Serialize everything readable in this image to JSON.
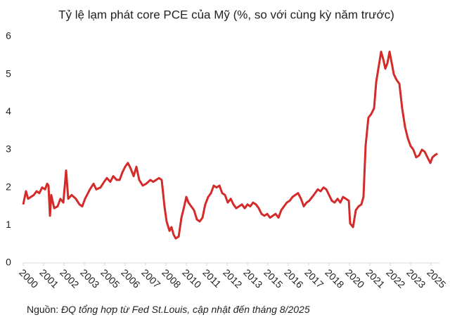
{
  "chart_data": {
    "type": "line",
    "title": "Tỷ lệ lạm phát core PCE của Mỹ (%, so với cùng kỳ năm trước)",
    "source_label": "Nguồn:",
    "source": "ĐQ tổng hợp từ Fed St.Louis, cập nhật đến tháng 8/2025",
    "color": "#d42a2a",
    "x": [
      2000.0,
      2000.17,
      2000.3,
      2000.65,
      2000.82,
      2000.99,
      2001.16,
      2001.34,
      2001.47,
      2001.55,
      2001.64,
      2001.72,
      2001.9,
      2002.11,
      2002.28,
      2002.46,
      2002.63,
      2002.76,
      2002.97,
      2003.23,
      2003.45,
      2003.62,
      2003.79,
      2004.09,
      2004.31,
      2004.48,
      2004.74,
      2004.96,
      2005.13,
      2005.34,
      2005.52,
      2005.73,
      2005.91,
      2006.08,
      2006.25,
      2006.42,
      2006.59,
      2006.77,
      2006.94,
      2007.11,
      2007.33,
      2007.54,
      2007.8,
      2007.97,
      2008.15,
      2008.32,
      2008.49,
      2008.66,
      2008.79,
      2008.97,
      2009.09,
      2009.22,
      2009.35,
      2009.53,
      2009.7,
      2009.87,
      2010.0,
      2010.13,
      2010.3,
      2010.47,
      2010.65,
      2010.82,
      2010.99,
      2011.16,
      2011.34,
      2011.51,
      2011.68,
      2011.85,
      2012.03,
      2012.2,
      2012.37,
      2012.54,
      2012.72,
      2012.89,
      2013.06,
      2013.23,
      2013.41,
      2013.58,
      2013.75,
      2013.92,
      2014.09,
      2014.27,
      2014.44,
      2014.61,
      2014.78,
      2014.96,
      2015.13,
      2015.3,
      2015.47,
      2015.65,
      2015.82,
      2015.99,
      2016.16,
      2016.34,
      2016.51,
      2016.68,
      2016.85,
      2017.03,
      2017.2,
      2017.37,
      2017.54,
      2017.72,
      2017.89,
      2018.06,
      2018.23,
      2018.41,
      2018.58,
      2018.75,
      2018.92,
      2019.09,
      2019.27,
      2019.44,
      2019.61,
      2019.78,
      2019.96,
      2020.04,
      2020.22,
      2020.39,
      2020.56,
      2020.73,
      2020.86,
      2020.99,
      2021.16,
      2021.34,
      2021.51,
      2021.64,
      2021.81,
      2021.94,
      2022.07,
      2022.2,
      2022.33,
      2022.46,
      2022.59,
      2022.72,
      2022.89,
      2023.06,
      2023.23,
      2023.41,
      2023.58,
      2023.75,
      2023.92,
      2024.09,
      2024.27,
      2024.44,
      2024.61,
      2024.78,
      2024.96,
      2025.09,
      2025.22,
      2025.39
    ],
    "values": [
      1.55,
      1.9,
      1.7,
      1.8,
      1.9,
      1.85,
      2.0,
      1.95,
      2.1,
      2.05,
      1.25,
      1.8,
      1.45,
      1.5,
      1.7,
      1.6,
      2.45,
      1.7,
      1.8,
      1.7,
      1.55,
      1.5,
      1.7,
      1.95,
      2.1,
      1.95,
      2.0,
      2.15,
      2.25,
      2.15,
      2.3,
      2.2,
      2.2,
      2.4,
      2.55,
      2.65,
      2.5,
      2.3,
      2.55,
      2.2,
      2.05,
      2.1,
      2.2,
      2.15,
      2.2,
      2.25,
      2.2,
      1.5,
      1.1,
      0.85,
      0.95,
      0.75,
      0.65,
      0.7,
      1.2,
      1.5,
      1.75,
      1.6,
      1.5,
      1.4,
      1.15,
      1.1,
      1.2,
      1.55,
      1.75,
      1.85,
      2.05,
      2.0,
      2.05,
      1.85,
      1.8,
      1.6,
      1.7,
      1.55,
      1.45,
      1.5,
      1.55,
      1.45,
      1.55,
      1.5,
      1.6,
      1.55,
      1.45,
      1.3,
      1.25,
      1.3,
      1.2,
      1.25,
      1.3,
      1.2,
      1.4,
      1.5,
      1.6,
      1.65,
      1.75,
      1.8,
      1.85,
      1.7,
      1.5,
      1.6,
      1.65,
      1.75,
      1.85,
      1.95,
      1.9,
      2.0,
      1.95,
      1.8,
      1.65,
      1.6,
      1.7,
      1.6,
      1.75,
      1.7,
      1.65,
      1.05,
      0.95,
      1.4,
      1.5,
      1.55,
      1.75,
      3.1,
      3.85,
      3.95,
      4.1,
      4.8,
      5.25,
      5.6,
      5.4,
      5.15,
      5.3,
      5.6,
      5.3,
      5.0,
      4.85,
      4.75,
      4.1,
      3.6,
      3.3,
      3.1,
      3.0,
      2.8,
      2.85,
      3.0,
      2.95,
      2.8,
      2.65,
      2.8,
      2.85,
      2.9
    ],
    "xlim": [
      2000,
      2025.5
    ],
    "xticks": [
      2000,
      {
        "value": 2001.25,
        "label": "2001"
      },
      {
        "value": 2002.5,
        "label": "2002"
      },
      {
        "value": 2003.75,
        "label": "2003"
      },
      2005,
      {
        "value": 2006.25,
        "label": "2006"
      },
      {
        "value": 2007.5,
        "label": "2007"
      },
      {
        "value": 2008.75,
        "label": "2008"
      },
      2010,
      {
        "value": 2011.25,
        "label": "2011"
      },
      {
        "value": 2012.5,
        "label": "2012"
      },
      {
        "value": 2013.75,
        "label": "2013"
      },
      2015,
      {
        "value": 2016.25,
        "label": "2016"
      },
      {
        "value": 2017.5,
        "label": "2017"
      },
      {
        "value": 2018.75,
        "label": "2018"
      },
      2020,
      {
        "value": 2021.25,
        "label": "2021"
      },
      {
        "value": 2022.5,
        "label": "2022"
      },
      {
        "value": 2023.75,
        "label": "2023"
      },
      2025
    ],
    "ylim": [
      0,
      6
    ],
    "yticks": [
      0,
      1,
      2,
      3,
      4,
      5,
      6
    ]
  }
}
